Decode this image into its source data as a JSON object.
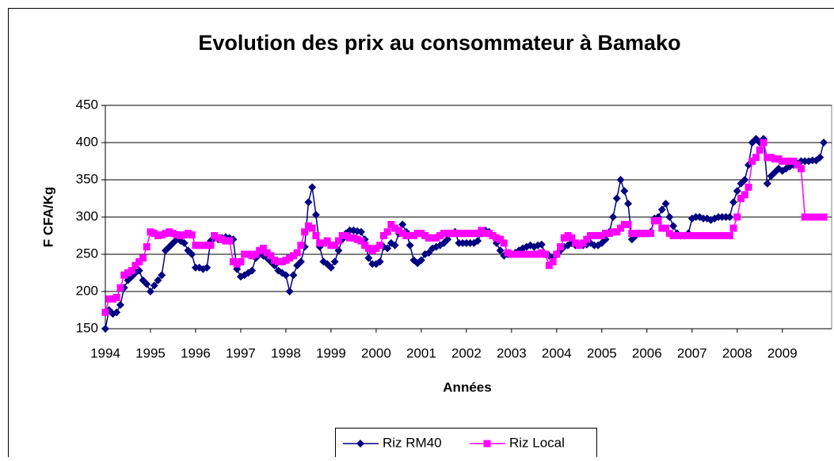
{
  "chart_data": {
    "type": "line",
    "title": "Evolution des prix au consommateur à Bamako",
    "x_label": "Années",
    "y_label": "F CFA/Kg",
    "categories": [
      "1994",
      null,
      null,
      null,
      null,
      null,
      null,
      null,
      null,
      null,
      null,
      null,
      "1995",
      null,
      null,
      null,
      null,
      null,
      null,
      null,
      null,
      null,
      null,
      null,
      "1996",
      null,
      null,
      null,
      null,
      null,
      null,
      null,
      null,
      null,
      null,
      null,
      "1997",
      null,
      null,
      null,
      null,
      null,
      null,
      null,
      null,
      null,
      null,
      null,
      "1998",
      null,
      null,
      null,
      null,
      null,
      null,
      null,
      null,
      null,
      null,
      null,
      "1999",
      null,
      null,
      null,
      null,
      null,
      null,
      null,
      null,
      null,
      null,
      null,
      "2000",
      null,
      null,
      null,
      null,
      null,
      null,
      null,
      null,
      null,
      null,
      null,
      "2001",
      null,
      null,
      null,
      null,
      null,
      null,
      null,
      null,
      null,
      null,
      null,
      "2002",
      null,
      null,
      null,
      null,
      null,
      null,
      null,
      null,
      null,
      null,
      null,
      "2003",
      null,
      null,
      null,
      null,
      null,
      null,
      null,
      null,
      null,
      null,
      null,
      "2004",
      null,
      null,
      null,
      null,
      null,
      null,
      null,
      null,
      null,
      null,
      null,
      "2005",
      null,
      null,
      null,
      null,
      null,
      null,
      null,
      null,
      null,
      null,
      null,
      "2006",
      null,
      null,
      null,
      null,
      null,
      null,
      null,
      null,
      null,
      null,
      null,
      "2007",
      null,
      null,
      null,
      null,
      null,
      null,
      null,
      null,
      null,
      null,
      null,
      "2008",
      null,
      null,
      null,
      null,
      null,
      null,
      null,
      null,
      null,
      null,
      null,
      "2009",
      null,
      null,
      null,
      null,
      null,
      null,
      null,
      null,
      null,
      null,
      null
    ],
    "series": [
      {
        "name": "Riz RM40",
        "color": "#000080",
        "marker": "diamond",
        "values": [
          150,
          175,
          170,
          172,
          182,
          205,
          215,
          220,
          225,
          228,
          215,
          210,
          200,
          208,
          215,
          222,
          255,
          260,
          265,
          270,
          268,
          265,
          255,
          250,
          232,
          232,
          230,
          232,
          268,
          272,
          270,
          272,
          273,
          272,
          270,
          230,
          220,
          222,
          225,
          228,
          245,
          250,
          248,
          245,
          240,
          235,
          228,
          225,
          222,
          200,
          222,
          235,
          240,
          260,
          320,
          340,
          303,
          260,
          240,
          237,
          232,
          240,
          255,
          270,
          278,
          282,
          282,
          281,
          280,
          270,
          245,
          237,
          237,
          240,
          260,
          258,
          265,
          262,
          278,
          290,
          280,
          262,
          242,
          238,
          242,
          250,
          252,
          258,
          260,
          262,
          265,
          270,
          278,
          280,
          265,
          265,
          265,
          265,
          265,
          268,
          278,
          282,
          280,
          275,
          265,
          255,
          248,
          250,
          250,
          252,
          255,
          258,
          260,
          262,
          260,
          262,
          263,
          250,
          248,
          245,
          250,
          255,
          260,
          262,
          265,
          262,
          262,
          262,
          263,
          265,
          262,
          262,
          265,
          270,
          280,
          300,
          325,
          350,
          335,
          318,
          270,
          275,
          278,
          278,
          278,
          280,
          298,
          300,
          310,
          318,
          300,
          288,
          278,
          275,
          275,
          278,
          298,
          300,
          300,
          298,
          298,
          296,
          298,
          300,
          300,
          300,
          300,
          320,
          335,
          345,
          350,
          370,
          400,
          405,
          400,
          405,
          345,
          355,
          360,
          365,
          362,
          365,
          368,
          370,
          372,
          375,
          375,
          375,
          376,
          376,
          380,
          400
        ]
      },
      {
        "name": "Riz Local",
        "color": "#ff00ff",
        "marker": "square",
        "values": [
          172,
          190,
          190,
          192,
          205,
          222,
          225,
          228,
          235,
          240,
          245,
          260,
          280,
          278,
          275,
          276,
          278,
          280,
          278,
          276,
          275,
          276,
          278,
          276,
          262,
          262,
          262,
          262,
          262,
          275,
          272,
          270,
          268,
          268,
          240,
          237,
          240,
          250,
          250,
          248,
          250,
          255,
          258,
          252,
          248,
          242,
          240,
          240,
          242,
          245,
          248,
          252,
          262,
          280,
          288,
          285,
          275,
          265,
          265,
          268,
          262,
          262,
          268,
          275,
          275,
          272,
          272,
          270,
          268,
          262,
          258,
          255,
          258,
          262,
          275,
          280,
          290,
          285,
          282,
          278,
          275,
          275,
          275,
          278,
          278,
          275,
          272,
          272,
          272,
          275,
          278,
          278,
          278,
          278,
          278,
          278,
          278,
          278,
          278,
          278,
          282,
          278,
          278,
          275,
          272,
          270,
          265,
          252,
          250,
          250,
          250,
          250,
          250,
          250,
          250,
          250,
          252,
          250,
          235,
          240,
          250,
          260,
          272,
          275,
          272,
          265,
          262,
          265,
          270,
          275,
          275,
          275,
          275,
          278,
          278,
          280,
          280,
          285,
          290,
          290,
          278,
          278,
          278,
          278,
          278,
          278,
          295,
          295,
          285,
          285,
          278,
          275,
          275,
          275,
          275,
          275,
          275,
          275,
          275,
          275,
          275,
          275,
          275,
          275,
          275,
          275,
          275,
          285,
          300,
          325,
          330,
          340,
          375,
          380,
          390,
          400,
          380,
          380,
          378,
          378,
          375,
          375,
          375,
          375,
          370,
          365,
          300,
          300,
          300,
          300,
          300,
          300
        ]
      }
    ],
    "ylim": [
      150,
      450
    ],
    "yticks": [
      150,
      200,
      250,
      300,
      350,
      400,
      450
    ],
    "grid": true,
    "legend": "bottom"
  }
}
